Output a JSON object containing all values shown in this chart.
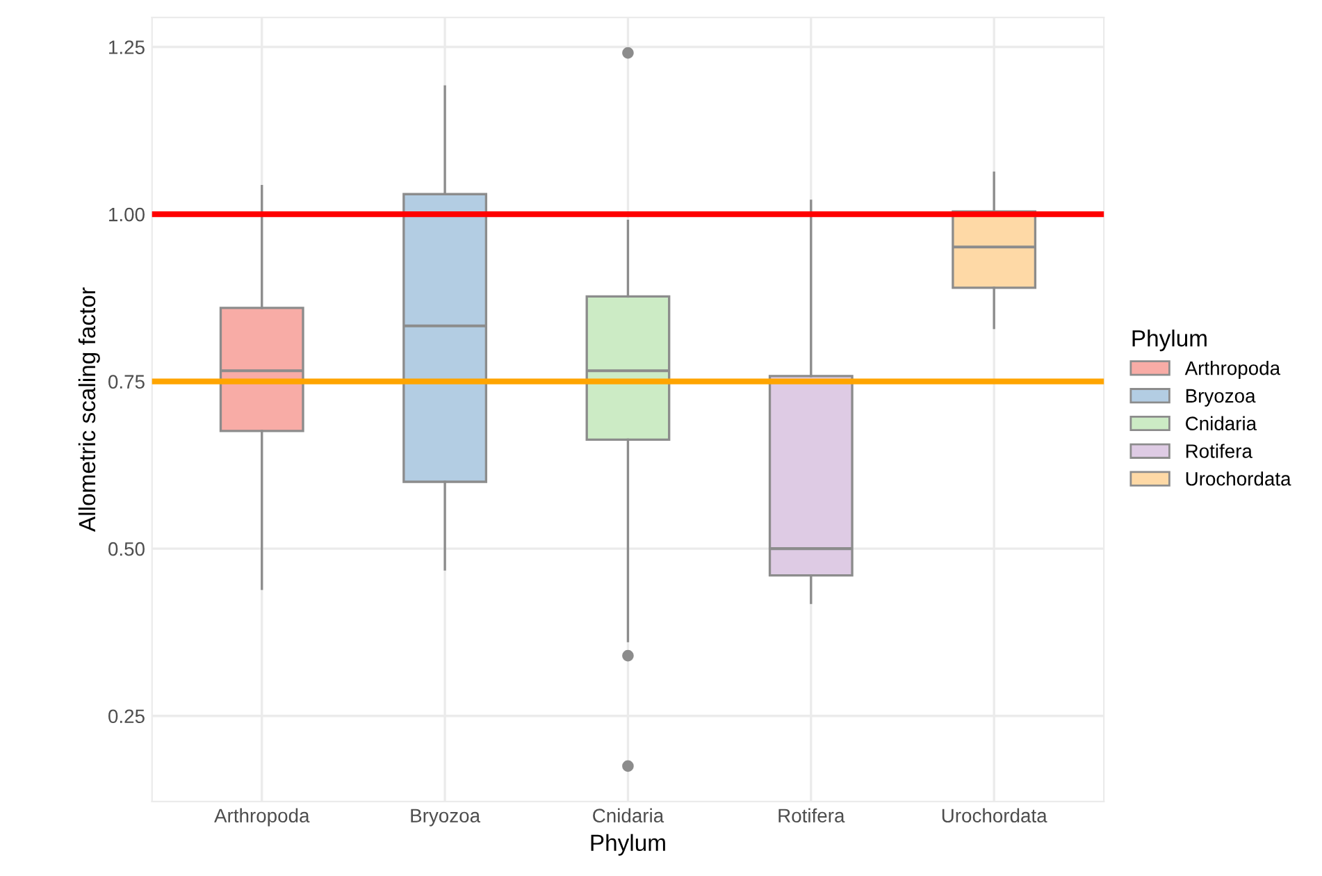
{
  "chart_data": {
    "type": "box",
    "xlabel": "Phylum",
    "ylabel": "Allometric scaling factor",
    "legend_title": "Phylum",
    "categories": [
      "Arthropoda",
      "Bryozoa",
      "Cnidaria",
      "Rotifera",
      "Urochordata"
    ],
    "series": [
      {
        "name": "Arthropoda",
        "color": "#f8aca6",
        "boxes": [
          {
            "low": 0.44,
            "q1": 0.676,
            "median": 0.766,
            "q3": 0.86,
            "high": 1.042
          },
          null,
          null,
          null,
          null
        ]
      },
      {
        "name": "Bryozoa",
        "color": "#b3cde3",
        "boxes": [
          null,
          {
            "low": 0.469,
            "q1": 0.6,
            "median": 0.833,
            "q3": 1.03,
            "high": 1.191
          },
          null,
          null,
          null
        ]
      },
      {
        "name": "Cnidaria",
        "color": "#ccebc5",
        "boxes": [
          null,
          null,
          {
            "low": 0.362,
            "q1": 0.663,
            "median": 0.766,
            "q3": 0.877,
            "high": 0.99,
            "outliers": [
              1.241,
              0.34,
              0.175
            ]
          },
          null,
          null
        ]
      },
      {
        "name": "Rotifera",
        "color": "#decbe4",
        "boxes": [
          null,
          null,
          null,
          {
            "low": 0.419,
            "q1": 0.46,
            "median": 0.5,
            "q3": 0.758,
            "high": 1.02
          },
          null
        ]
      },
      {
        "name": "Urochordata",
        "color": "#fed9a6",
        "boxes": [
          null,
          null,
          null,
          null,
          {
            "low": 0.83,
            "q1": 0.89,
            "median": 0.951,
            "q3": 1.004,
            "high": 1.062
          }
        ]
      }
    ],
    "ylim": [
      0.122,
      1.294
    ],
    "yticks": [
      {
        "value": 0.25,
        "label": "0.25"
      },
      {
        "value": 0.5,
        "label": "0.50"
      },
      {
        "value": 0.75,
        "label": "0.75"
      },
      {
        "value": 1.0,
        "label": "1.00"
      },
      {
        "value": 1.25,
        "label": "1.25"
      }
    ],
    "ref_lines": [
      {
        "axis": "y",
        "value": 1.0,
        "label": null,
        "color": "#ff0000"
      },
      {
        "axis": "y",
        "value": 0.75,
        "label": null,
        "color": "#ffa500"
      }
    ],
    "grid": true,
    "legend": "right"
  }
}
